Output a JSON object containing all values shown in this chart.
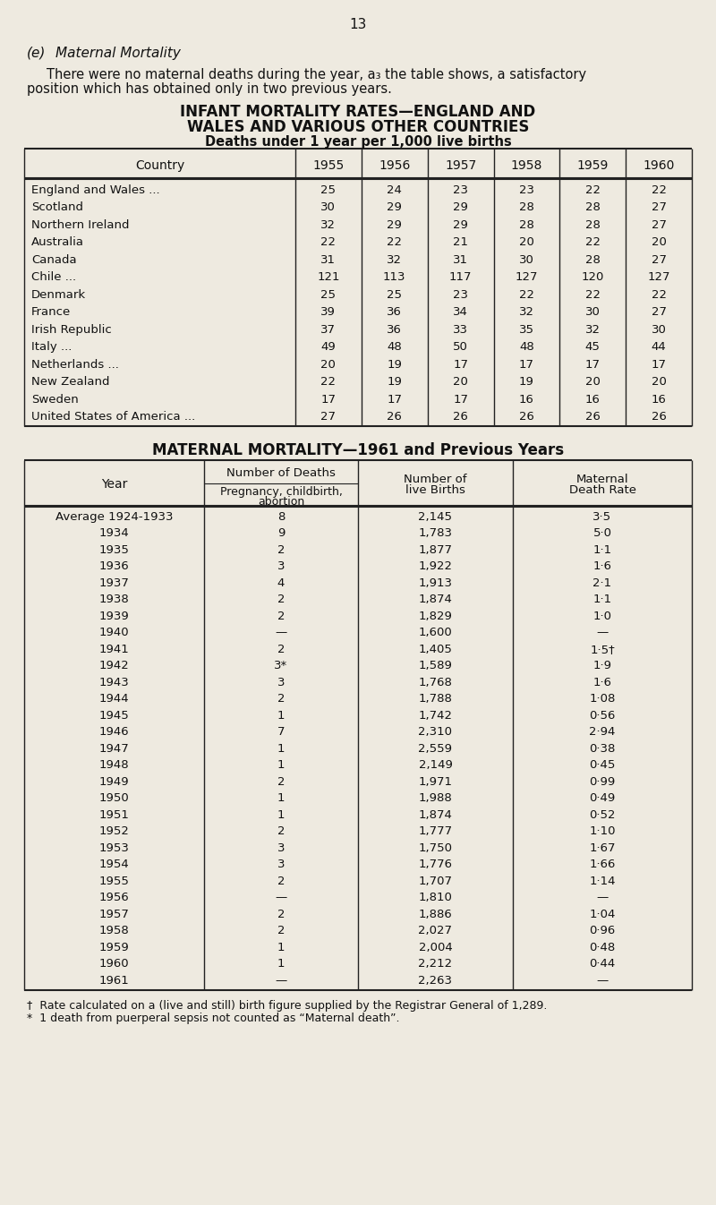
{
  "page_number": "13",
  "section_title": "(e)   Maternal Mortality",
  "section_text_line1": "There were no maternal deaths during the year, a₃ the table shows, a satisfactory",
  "section_text_line2": "position which has obtained only in two previous years.",
  "table1_title_line1": "INFANT MORTALITY RATES—ENGLAND AND",
  "table1_title_line2": "WALES AND VARIOUS OTHER COUNTRIES",
  "table1_subtitle": "Deaths under 1 year per 1,000 live births",
  "table1_headers": [
    "Country",
    "1955",
    "1956",
    "1957",
    "1958",
    "1959",
    "1960"
  ],
  "table1_data": [
    [
      "England and Wales ...",
      "...",
      "25",
      "24",
      "23",
      "23",
      "22",
      "22"
    ],
    [
      "Scotland",
      "...",
      "...",
      "...",
      "30",
      "29",
      "29",
      "28",
      "28",
      "27"
    ],
    [
      "Northern Ireland",
      "...",
      "...",
      "32",
      "29",
      "29",
      "28",
      "28",
      "27"
    ],
    [
      "Australia",
      "...",
      "...",
      "...",
      "22",
      "22",
      "21",
      "20",
      "22",
      "20"
    ],
    [
      "Canada",
      "...",
      "...",
      "...",
      "31",
      "32",
      "31",
      "30",
      "28",
      "27"
    ],
    [
      "Chile ...",
      "...",
      "...",
      "...",
      "121",
      "113",
      "117",
      "127",
      "120",
      "127"
    ],
    [
      "Denmark",
      "...",
      "...",
      "...",
      "25",
      "25",
      "23",
      "22",
      "22",
      "22"
    ],
    [
      "France",
      "...",
      "...",
      "...",
      "39",
      "36",
      "34",
      "32",
      "30",
      "27"
    ],
    [
      "Irish Republic",
      "...",
      "...",
      "37",
      "36",
      "33",
      "35",
      "32",
      "30"
    ],
    [
      "Italy ...",
      "...",
      "...",
      "...",
      "49",
      "48",
      "50",
      "48",
      "45",
      "44"
    ],
    [
      "Netherlands ...",
      "...",
      "...",
      "20",
      "19",
      "17",
      "17",
      "17",
      "17"
    ],
    [
      "New Zealand",
      "...",
      "...",
      "22",
      "19",
      "20",
      "19",
      "20",
      "20"
    ],
    [
      "Sweden",
      "...",
      "...",
      "...",
      "17",
      "17",
      "17",
      "16",
      "16",
      "16"
    ],
    [
      "United States of America ...",
      "27",
      "26",
      "26",
      "26",
      "26",
      "26"
    ]
  ],
  "table1_display": [
    [
      "England and Wales ...",
      "   ...",
      "25",
      "24",
      "23",
      "23",
      "22",
      "22"
    ],
    [
      "Scotland   ...",
      "   ...   ...",
      "30",
      "29",
      "29",
      "28",
      "28",
      "27"
    ],
    [
      "Northern Ireland   ...",
      "   ...",
      "32",
      "29",
      "29",
      "28",
      "28",
      "27"
    ],
    [
      "Australia   ...",
      "   ...   ...",
      "22",
      "22",
      "21",
      "20",
      "22",
      "20"
    ],
    [
      "Canada   ...",
      "   ...   ...",
      "31",
      "32",
      "31",
      "30",
      "28",
      "27"
    ],
    [
      "Chile ...   ...",
      "   ...   ...",
      "121",
      "113",
      "117",
      "127",
      "120",
      "127"
    ],
    [
      "Denmark   ...",
      "   ...   ...",
      "25",
      "25",
      "23",
      "22",
      "22",
      "22"
    ],
    [
      "France   ...",
      "   ...   ...",
      "39",
      "36",
      "34",
      "32",
      "30",
      "27"
    ],
    [
      "Irish Republic   ...",
      "   ...",
      "37",
      "36",
      "33",
      "35",
      "32",
      "30"
    ],
    [
      "Italy ...   ...",
      "   ...   ...",
      "49",
      "48",
      "50",
      "48",
      "45",
      "44"
    ],
    [
      "Netherlands ...   ...",
      "   ...",
      "20",
      "19",
      "17",
      "17",
      "17",
      "17"
    ],
    [
      "New Zealand   ...",
      "   ...",
      "22",
      "19",
      "20",
      "19",
      "20",
      "20"
    ],
    [
      "Sweden   ...",
      "   ...   ...",
      "17",
      "17",
      "17",
      "16",
      "16",
      "16"
    ],
    [
      "United States of America ...",
      "27",
      "26",
      "26",
      "26",
      "26",
      "26"
    ]
  ],
  "table1_rows": [
    [
      "England and Wales ...",
      "25",
      "24",
      "23",
      "23",
      "22",
      "22"
    ],
    [
      "Scotland",
      "30",
      "29",
      "29",
      "28",
      "28",
      "27"
    ],
    [
      "Northern Ireland",
      "32",
      "29",
      "29",
      "28",
      "28",
      "27"
    ],
    [
      "Australia",
      "22",
      "22",
      "21",
      "20",
      "22",
      "20"
    ],
    [
      "Canada",
      "31",
      "32",
      "31",
      "30",
      "28",
      "27"
    ],
    [
      "Chile ...",
      "121",
      "113",
      "117",
      "127",
      "120",
      "127"
    ],
    [
      "Denmark",
      "25",
      "25",
      "23",
      "22",
      "22",
      "22"
    ],
    [
      "France",
      "39",
      "36",
      "34",
      "32",
      "30",
      "27"
    ],
    [
      "Irish Republic",
      "37",
      "36",
      "33",
      "35",
      "32",
      "30"
    ],
    [
      "Italy ...",
      "49",
      "48",
      "50",
      "48",
      "45",
      "44"
    ],
    [
      "Netherlands ...",
      "20",
      "19",
      "17",
      "17",
      "17",
      "17"
    ],
    [
      "New Zealand",
      "22",
      "19",
      "20",
      "19",
      "20",
      "20"
    ],
    [
      "Sweden",
      "17",
      "17",
      "17",
      "16",
      "16",
      "16"
    ],
    [
      "United States of America ...",
      "27",
      "26",
      "26",
      "26",
      "26",
      "26"
    ]
  ],
  "table1_country_dots": [
    "... ...",
    "... ... ...",
    "... ...",
    "... ... ...",
    "... ... ...",
    "",
    "... ... ...",
    "... ... ...",
    "... ...",
    "... ... ...",
    "... ...",
    "... ...",
    "... ... ...",
    ""
  ],
  "table2_title": "MATERNAL MORTALITY—1961 and Previous Years",
  "table2_data": [
    [
      "Average 1924-1933",
      "8",
      "2,145",
      "3·5"
    ],
    [
      "1934",
      "9",
      "1,783",
      "5·0"
    ],
    [
      "1935",
      "2",
      "1,877",
      "1·1"
    ],
    [
      "1936",
      "3",
      "1,922",
      "1·6"
    ],
    [
      "1937",
      "4",
      "1,913",
      "2·1"
    ],
    [
      "1938",
      "2",
      "1,874",
      "1·1"
    ],
    [
      "1939",
      "2",
      "1,829",
      "1·0"
    ],
    [
      "1940",
      "—",
      "1,600",
      "—"
    ],
    [
      "1941",
      "2",
      "1,405",
      "1·5†"
    ],
    [
      "1942",
      "3*",
      "1,589",
      "1·9"
    ],
    [
      "1943",
      "3",
      "1,768",
      "1·6"
    ],
    [
      "1944",
      "2",
      "1,788",
      "1·08"
    ],
    [
      "1945",
      "1",
      "1,742",
      "0·56"
    ],
    [
      "1946",
      "7",
      "2,310",
      "2·94"
    ],
    [
      "1947",
      "1",
      "2,559",
      "0·38"
    ],
    [
      "1948",
      "1",
      "2,149",
      "0·45"
    ],
    [
      "1949",
      "2",
      "1,971",
      "0·99"
    ],
    [
      "1950",
      "1",
      "1,988",
      "0·49"
    ],
    [
      "1951",
      "1",
      "1,874",
      "0·52"
    ],
    [
      "1952",
      "2",
      "1,777",
      "1·10"
    ],
    [
      "1953",
      "3",
      "1,750",
      "1·67"
    ],
    [
      "1954",
      "3",
      "1,776",
      "1·66"
    ],
    [
      "1955",
      "2",
      "1,707",
      "1·14"
    ],
    [
      "1956",
      "—",
      "1,810",
      "—"
    ],
    [
      "1957",
      "2",
      "1,886",
      "1·04"
    ],
    [
      "1958",
      "2",
      "2,027",
      "0·96"
    ],
    [
      "1959",
      "1",
      "2,004",
      "0·48"
    ],
    [
      "1960",
      "1",
      "2,212",
      "0·44"
    ],
    [
      "1961",
      "—",
      "2,263",
      "—"
    ]
  ],
  "footnote1": "†  Rate calculated on a (live and still) birth figure supplied by the Registrar General of 1,289.",
  "footnote2": "*  1 death from puerperal sepsis not counted as “Maternal death”.",
  "bg_color": "#eeeae0",
  "text_color": "#111111",
  "border_color": "#222222"
}
